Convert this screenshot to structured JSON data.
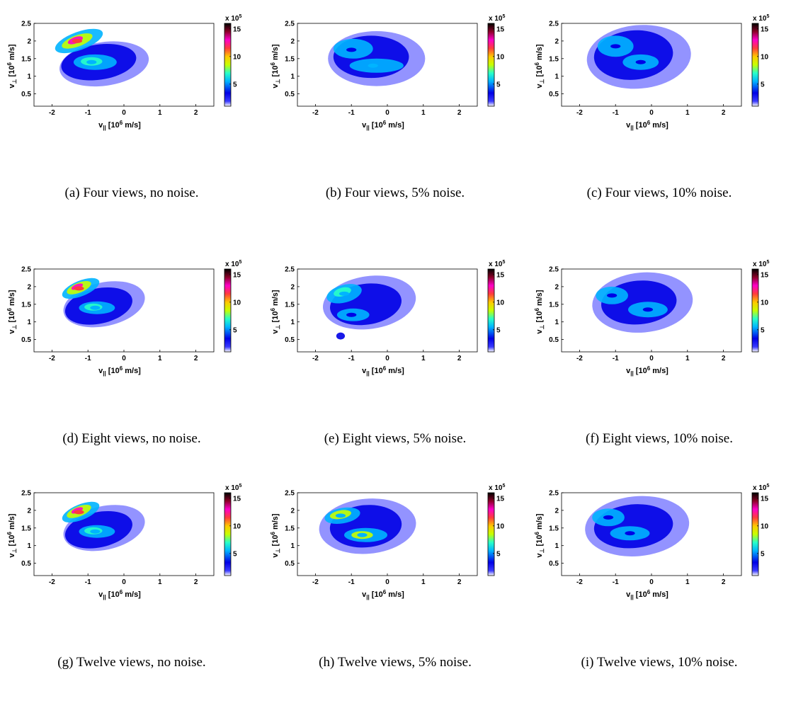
{
  "colorbar": {
    "multiplier": "x 10",
    "multiplier_exp": "5",
    "ticks": [
      "15",
      "10",
      "5"
    ],
    "tick_values": [
      15,
      10,
      5
    ],
    "range": [
      1,
      16
    ],
    "colormap": [
      "#ffffff",
      "#3a3aff",
      "#0000e6",
      "#00b4ff",
      "#28ffc8",
      "#c8ff00",
      "#ffc800",
      "#ff3c3c",
      "#ff00c8",
      "#8c0028",
      "#000000"
    ]
  },
  "x_axis": {
    "ticks": [
      "-2",
      "-1",
      "0",
      "1",
      "2"
    ],
    "tick_values": [
      -2,
      -1,
      0,
      1,
      2
    ],
    "range": [
      -2.5,
      2.5
    ]
  },
  "y_axis": {
    "ticks": [
      "2.5",
      "2",
      "1.5",
      "1",
      "0.5"
    ],
    "tick_values": [
      2.5,
      2,
      1.5,
      1,
      0.5
    ],
    "range": [
      0.15,
      2.5
    ]
  },
  "xlabel": {
    "sym": "v",
    "sub": "||",
    "pre": " [10",
    "exp": "6",
    "post": " m/s]"
  },
  "ylabel": {
    "sym": "v",
    "sub": "⊥",
    "pre": " [10",
    "exp": "6",
    "post": " m/s]"
  },
  "panels": [
    {
      "caption": "(a)  Four views, no noise."
    },
    {
      "caption": "(b)  Four views, 5% noise."
    },
    {
      "caption": "(c)  Four views, 10% noise."
    },
    {
      "caption": "(d)  Eight views, no noise."
    },
    {
      "caption": "(e)  Eight views, 5% noise."
    },
    {
      "caption": "(f)  Eight views, 10% noise."
    },
    {
      "caption": "(g)  Twelve views, no noise."
    },
    {
      "caption": "(h)  Twelve views, 5% noise."
    },
    {
      "caption": "(i)  Twelve views, 10% noise."
    }
  ],
  "chart_data": [
    {
      "type": "heatmap",
      "panel": "a",
      "views": 4,
      "noise_percent": 0,
      "xlim": [
        -2.5,
        2.5
      ],
      "ylim": [
        0.15,
        2.5
      ],
      "clim": [
        1,
        16
      ],
      "peaks": [
        {
          "x": -1.3,
          "y": 2.0,
          "value": 11
        },
        {
          "x": -0.9,
          "y": 1.4,
          "value": 6
        }
      ]
    },
    {
      "type": "heatmap",
      "panel": "b",
      "views": 4,
      "noise_percent": 5,
      "xlim": [
        -2.5,
        2.5
      ],
      "ylim": [
        0.15,
        2.5
      ],
      "clim": [
        1,
        16
      ],
      "peaks": [
        {
          "x": -1.0,
          "y": 1.75,
          "value": 4
        },
        {
          "x": -0.4,
          "y": 1.3,
          "value": 5
        }
      ]
    },
    {
      "type": "heatmap",
      "panel": "c",
      "views": 4,
      "noise_percent": 10,
      "xlim": [
        -2.5,
        2.5
      ],
      "ylim": [
        0.15,
        2.5
      ],
      "clim": [
        1,
        16
      ],
      "peaks": [
        {
          "x": -1.0,
          "y": 1.85,
          "value": 4
        },
        {
          "x": -0.3,
          "y": 1.4,
          "value": 4
        }
      ]
    },
    {
      "type": "heatmap",
      "panel": "d",
      "views": 8,
      "noise_percent": 0,
      "xlim": [
        -2.5,
        2.5
      ],
      "ylim": [
        0.15,
        2.5
      ],
      "clim": [
        1,
        16
      ],
      "peaks": [
        {
          "x": -1.25,
          "y": 1.95,
          "value": 12
        },
        {
          "x": -0.8,
          "y": 1.4,
          "value": 6
        }
      ]
    },
    {
      "type": "heatmap",
      "panel": "e",
      "views": 8,
      "noise_percent": 5,
      "xlim": [
        -2.5,
        2.5
      ],
      "ylim": [
        0.15,
        2.5
      ],
      "clim": [
        1,
        16
      ],
      "peaks": [
        {
          "x": -1.2,
          "y": 1.8,
          "value": 5
        },
        {
          "x": -1.0,
          "y": 1.2,
          "value": 4
        }
      ]
    },
    {
      "type": "heatmap",
      "panel": "f",
      "views": 8,
      "noise_percent": 10,
      "xlim": [
        -2.5,
        2.5
      ],
      "ylim": [
        0.15,
        2.5
      ],
      "clim": [
        1,
        16
      ],
      "peaks": [
        {
          "x": -1.1,
          "y": 1.75,
          "value": 4
        },
        {
          "x": -0.1,
          "y": 1.35,
          "value": 4
        }
      ]
    },
    {
      "type": "heatmap",
      "panel": "g",
      "views": 12,
      "noise_percent": 0,
      "xlim": [
        -2.5,
        2.5
      ],
      "ylim": [
        0.15,
        2.5
      ],
      "clim": [
        1,
        16
      ],
      "peaks": [
        {
          "x": -1.25,
          "y": 1.95,
          "value": 12
        },
        {
          "x": -0.8,
          "y": 1.4,
          "value": 6
        }
      ]
    },
    {
      "type": "heatmap",
      "panel": "h",
      "views": 12,
      "noise_percent": 5,
      "xlim": [
        -2.5,
        2.5
      ],
      "ylim": [
        0.15,
        2.5
      ],
      "clim": [
        1,
        16
      ],
      "peaks": [
        {
          "x": -1.3,
          "y": 1.85,
          "value": 6
        },
        {
          "x": -0.7,
          "y": 1.3,
          "value": 6
        }
      ]
    },
    {
      "type": "heatmap",
      "panel": "i",
      "views": 12,
      "noise_percent": 10,
      "xlim": [
        -2.5,
        2.5
      ],
      "ylim": [
        0.15,
        2.5
      ],
      "clim": [
        1,
        16
      ],
      "peaks": [
        {
          "x": -1.2,
          "y": 1.8,
          "value": 4
        },
        {
          "x": -0.6,
          "y": 1.35,
          "value": 4
        }
      ]
    }
  ]
}
